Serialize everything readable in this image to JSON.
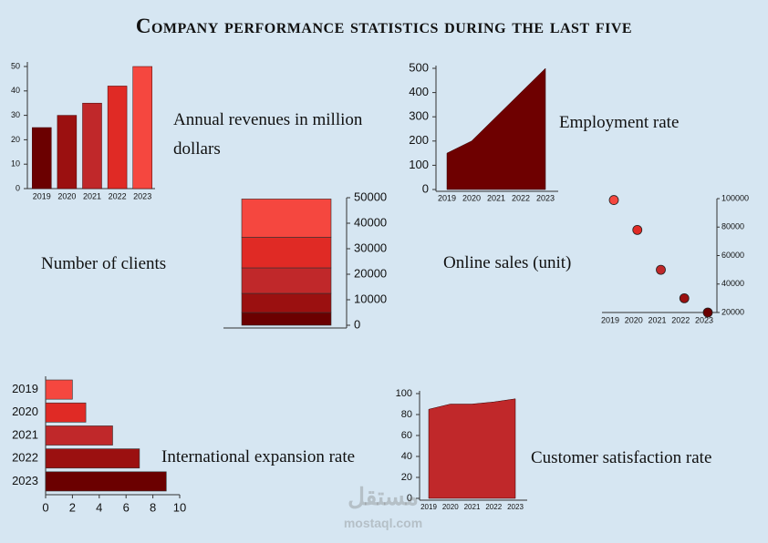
{
  "title": "Company performance statistics during the last five",
  "watermark": {
    "logo": "مستقل",
    "site": "mostaql.com"
  },
  "chart_data": [
    {
      "type": "bar",
      "title": "Annual revenues in million dollars",
      "categories": [
        "2019",
        "2020",
        "2021",
        "2022",
        "2023"
      ],
      "values": [
        25,
        30,
        35,
        42,
        50
      ],
      "colors": [
        "#6b0000",
        "#9b1010",
        "#c0282a",
        "#e02a25",
        "#f5473f"
      ],
      "ylim": [
        0,
        50
      ],
      "yticks": [
        0,
        10,
        20,
        30,
        40,
        50
      ]
    },
    {
      "type": "area",
      "title": "Employment rate",
      "categories": [
        "2019",
        "2020",
        "2021",
        "2022",
        "2023"
      ],
      "values": [
        150,
        200,
        300,
        400,
        500
      ],
      "color": "#6e0000",
      "ylim": [
        0,
        500
      ],
      "yticks": [
        0,
        100,
        200,
        300,
        400,
        500
      ]
    },
    {
      "type": "stacked",
      "title": "Number of clients",
      "values": [
        5000,
        7500,
        10000,
        12000,
        15000
      ],
      "colors": [
        "#6b0000",
        "#9b1010",
        "#c0282a",
        "#e02a25",
        "#f5473f"
      ],
      "ylim": [
        0,
        50000
      ],
      "yticks": [
        0,
        10000,
        20000,
        30000,
        40000,
        50000
      ]
    },
    {
      "type": "scatter",
      "title": "Online sales (unit)",
      "categories": [
        "2019",
        "2020",
        "2021",
        "2022",
        "2023"
      ],
      "values": [
        99000,
        78000,
        50000,
        30000,
        20000
      ],
      "colors": [
        "#f5473f",
        "#e02a25",
        "#c0282a",
        "#9b1010",
        "#6b0000"
      ],
      "ylim": [
        20000,
        100000
      ],
      "yticks": [
        20000,
        40000,
        60000,
        80000,
        100000
      ]
    },
    {
      "type": "hbar",
      "title": "International expansion rate",
      "categories": [
        "2019",
        "2020",
        "2021",
        "2022",
        "2023"
      ],
      "values": [
        2,
        3,
        5,
        7,
        9
      ],
      "colors": [
        "#f5473f",
        "#e02a25",
        "#c0282a",
        "#9b1010",
        "#6b0000"
      ],
      "xlim": [
        0,
        10
      ],
      "xticks": [
        0,
        2,
        4,
        6,
        8,
        10
      ]
    },
    {
      "type": "area",
      "title": "Customer satisfaction rate",
      "categories": [
        "2019",
        "2020",
        "2021",
        "2022",
        "2023"
      ],
      "values": [
        85,
        90,
        90,
        92,
        95
      ],
      "color": "#c0282a",
      "ylim": [
        0,
        100
      ],
      "yticks": [
        0,
        20,
        40,
        60,
        80,
        100
      ]
    }
  ]
}
